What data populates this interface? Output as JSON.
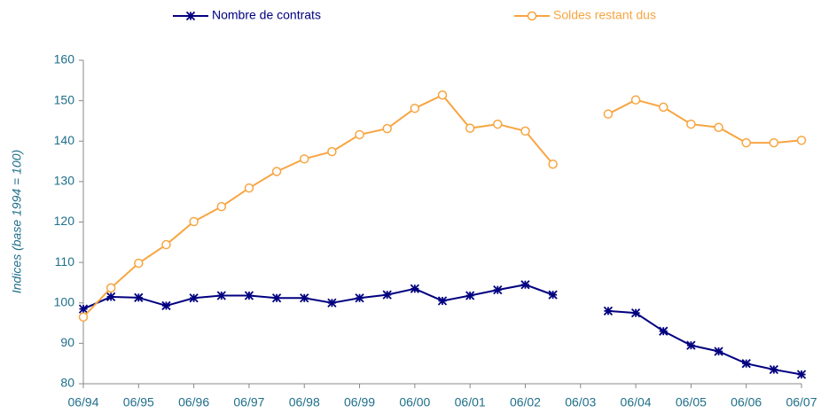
{
  "chart_data": {
    "type": "line",
    "y_label": "Indices (base 1994 = 100)",
    "categories": [
      "06/94",
      null,
      "06/95",
      null,
      "06/96",
      null,
      "06/97",
      null,
      "06/98",
      null,
      "06/99",
      null,
      "06/00",
      null,
      "06/01",
      null,
      "06/02",
      null,
      "06/03",
      null,
      "06/04",
      null,
      "06/05",
      null,
      "06/06",
      null,
      "06/07"
    ],
    "series": [
      {
        "name": "Nombre de contrats",
        "color": "#000080",
        "marker": "asterisk",
        "values": [
          98.5,
          101.5,
          101.3,
          99.3,
          101.2,
          101.8,
          101.8,
          101.2,
          101.2,
          100,
          101.2,
          102,
          103.5,
          100.5,
          101.8,
          103.2,
          104.5,
          102,
          null,
          98,
          97.5,
          93,
          89.5,
          88,
          85,
          83.5,
          82.3
        ]
      },
      {
        "name": "Soldes restant dus",
        "color": "#f7a541",
        "marker": "circle",
        "values": [
          96.5,
          103.7,
          109.8,
          114.4,
          120.1,
          123.8,
          128.4,
          132.5,
          135.6,
          137.4,
          141.6,
          143.1,
          148.1,
          151.4,
          143.2,
          144.2,
          142.5,
          134.3,
          null,
          146.7,
          150.2,
          148.4,
          144.2,
          143.4,
          139.6,
          139.6,
          140.2
        ]
      }
    ],
    "ylim": [
      80,
      160
    ],
    "yticks": [
      80,
      90,
      100,
      110,
      120,
      130,
      140,
      150,
      160
    ],
    "grid": false,
    "legend": "top"
  }
}
